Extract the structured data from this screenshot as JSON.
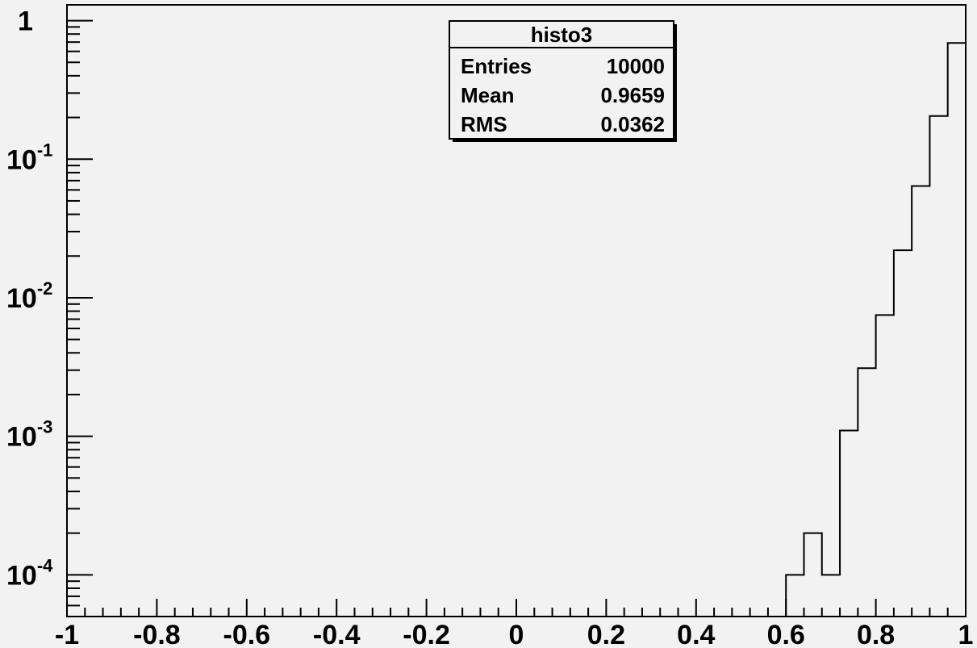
{
  "chart_data": {
    "type": "histogram",
    "y_scale": "log",
    "xlim": [
      -1,
      1
    ],
    "ylim": [
      5e-05,
      1.3
    ],
    "bin_width": 0.04,
    "x_ticks": [
      {
        "value": -1,
        "label": "-1"
      },
      {
        "value": -0.8,
        "label": "-0.8"
      },
      {
        "value": -0.6,
        "label": "-0.6"
      },
      {
        "value": -0.4,
        "label": "-0.4"
      },
      {
        "value": -0.2,
        "label": "-0.2"
      },
      {
        "value": 0,
        "label": "0"
      },
      {
        "value": 0.2,
        "label": "0.2"
      },
      {
        "value": 0.4,
        "label": "0.4"
      },
      {
        "value": 0.6,
        "label": "0.6"
      },
      {
        "value": 0.8,
        "label": "0.8"
      },
      {
        "value": 1,
        "label": "1"
      }
    ],
    "y_ticks": [
      {
        "value": 1,
        "base": "1",
        "exp": ""
      },
      {
        "value": 0.1,
        "base": "10",
        "exp": "-1"
      },
      {
        "value": 0.01,
        "base": "10",
        "exp": "-2"
      },
      {
        "value": 0.001,
        "base": "10",
        "exp": "-3"
      },
      {
        "value": 0.0001,
        "base": "10",
        "exp": "-4"
      }
    ],
    "bins": [
      {
        "x0": 0.6,
        "x1": 0.64,
        "y": 0.0001
      },
      {
        "x0": 0.64,
        "x1": 0.68,
        "y": 0.0002
      },
      {
        "x0": 0.68,
        "x1": 0.72,
        "y": 0.0001
      },
      {
        "x0": 0.72,
        "x1": 0.76,
        "y": 0.0011
      },
      {
        "x0": 0.76,
        "x1": 0.8,
        "y": 0.0031
      },
      {
        "x0": 0.8,
        "x1": 0.84,
        "y": 0.0075
      },
      {
        "x0": 0.84,
        "x1": 0.88,
        "y": 0.022
      },
      {
        "x0": 0.88,
        "x1": 0.92,
        "y": 0.064
      },
      {
        "x0": 0.92,
        "x1": 0.96,
        "y": 0.205
      },
      {
        "x0": 0.96,
        "x1": 1.0,
        "y": 0.69
      }
    ],
    "stats_box": {
      "title": "histo3",
      "rows": [
        {
          "label": "Entries",
          "value": "10000"
        },
        {
          "label": "Mean",
          "value": "0.9659"
        },
        {
          "label": "RMS",
          "value": "0.0362"
        }
      ]
    },
    "grid": false,
    "colors": {
      "background": "#f2f2f2",
      "line": "#000000"
    }
  }
}
